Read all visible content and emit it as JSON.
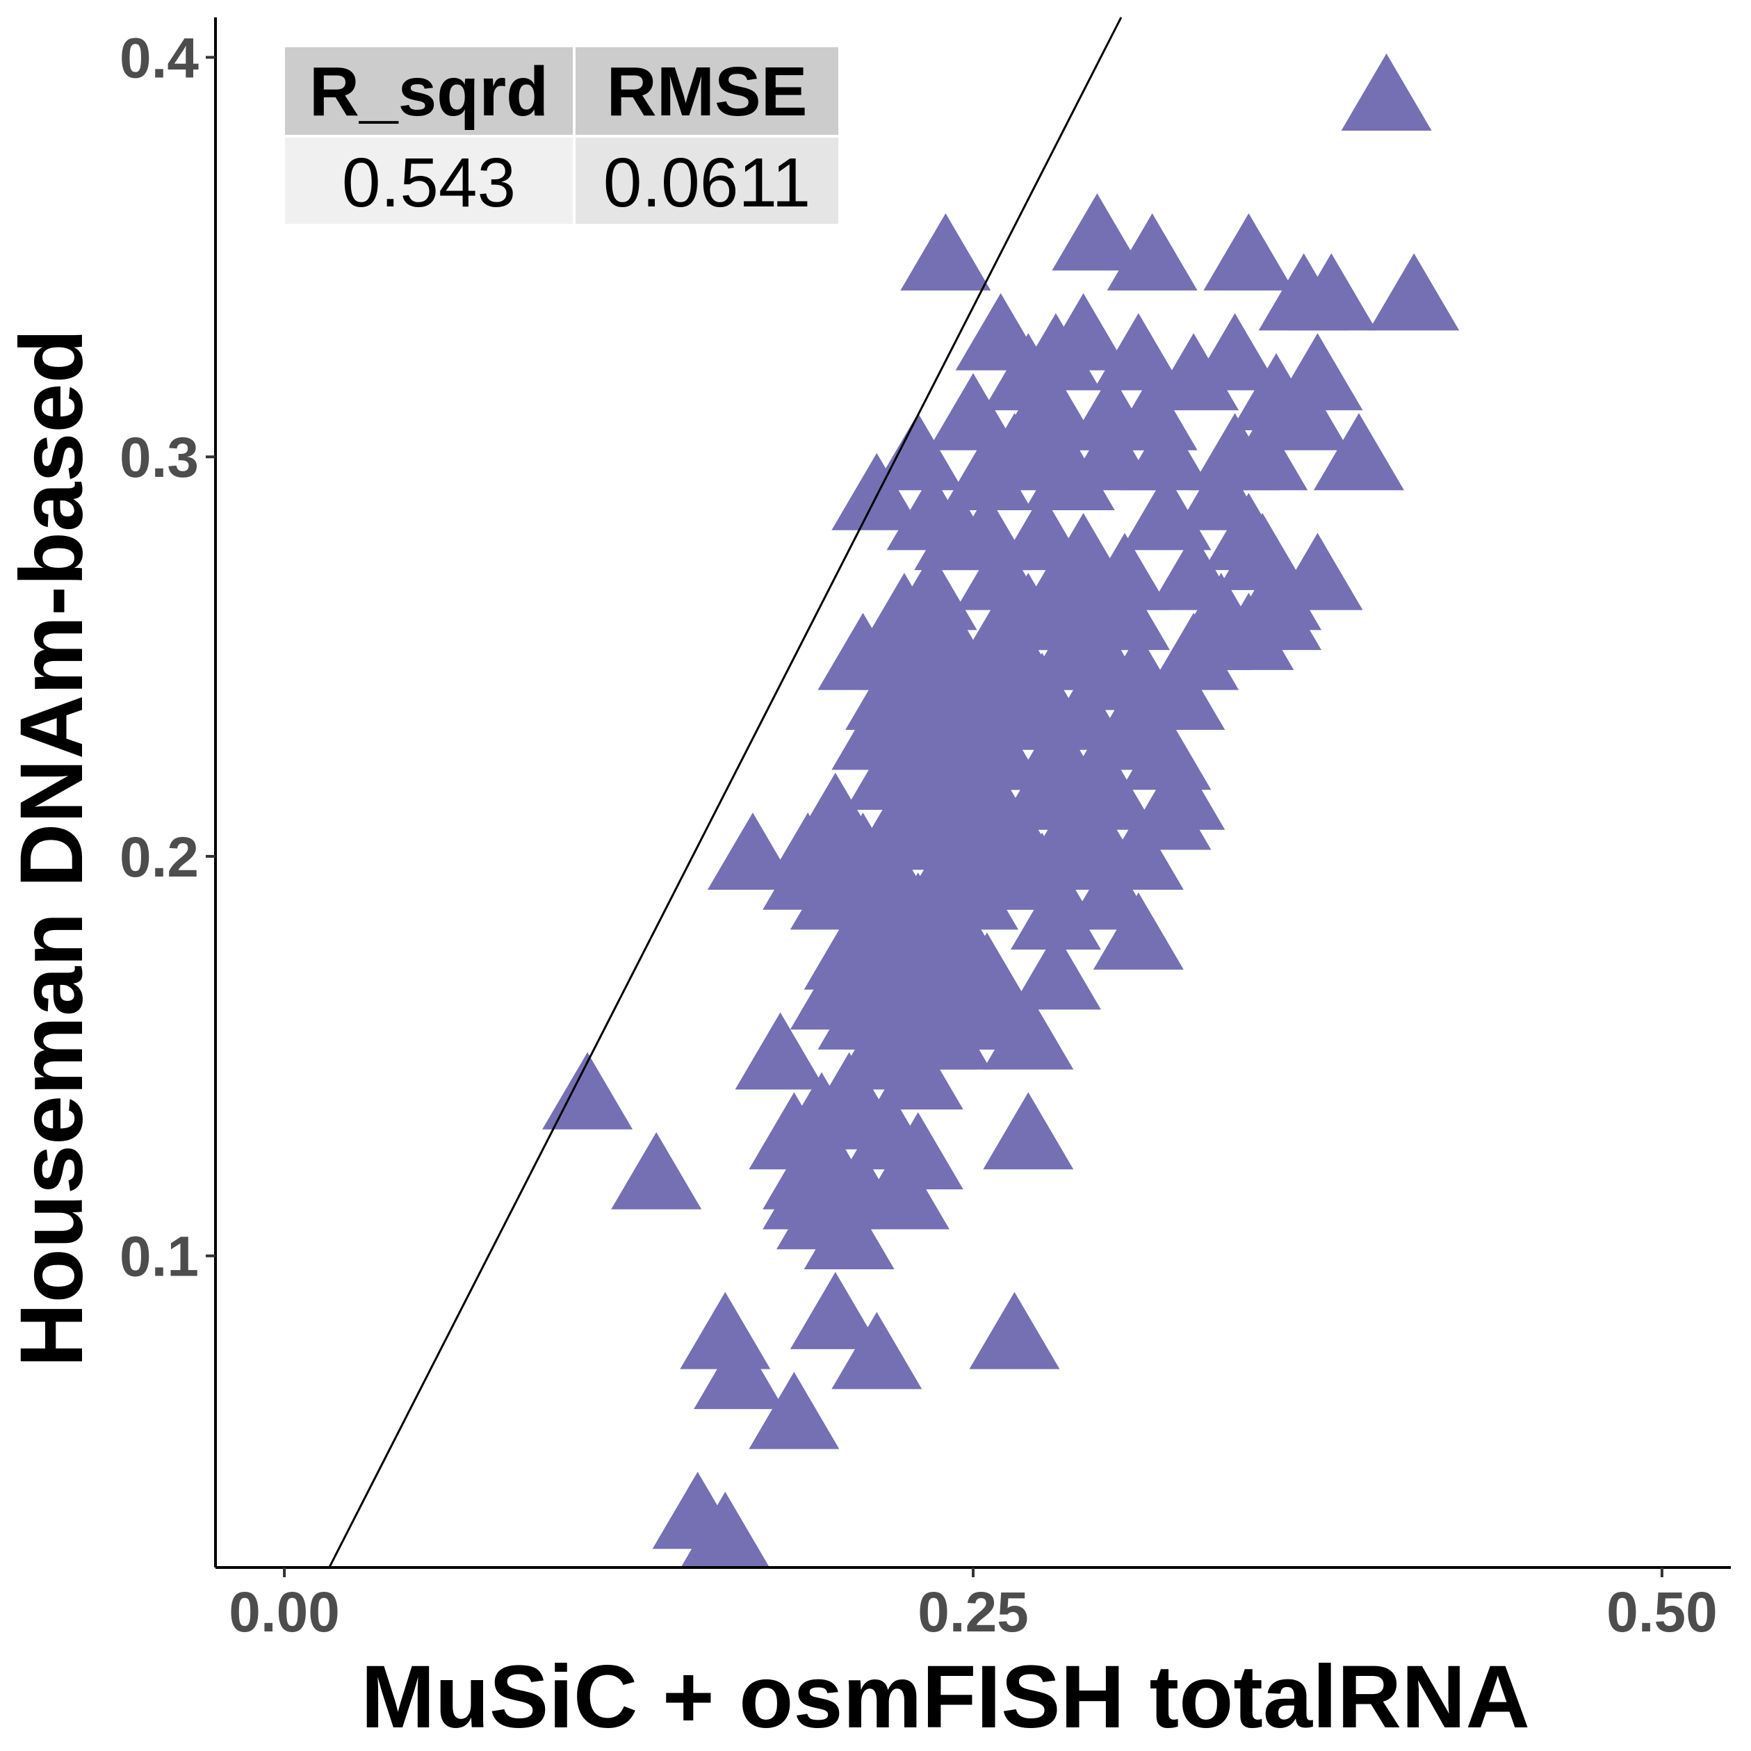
{
  "chart_data": {
    "type": "scatter",
    "title": "",
    "xlabel": "MuSiC + osmFISH totalRNA",
    "ylabel": "Houseman DNAm-based",
    "xlim": [
      -0.025,
      0.525
    ],
    "ylim": [
      0.022,
      0.41
    ],
    "x_ticks": [
      0.0,
      0.25,
      0.5
    ],
    "x_tick_labels": [
      "0.00",
      "0.25",
      "0.50"
    ],
    "y_ticks": [
      0.1,
      0.2,
      0.3,
      0.4
    ],
    "y_tick_labels": [
      "0.1",
      "0.2",
      "0.3",
      "0.4"
    ],
    "grid": false,
    "marker": "triangle",
    "point_color": "#7570b3",
    "fit_line": {
      "color": "#000000",
      "slope": 1.35,
      "intercept": 0.0
    },
    "stats_table": {
      "headers": [
        "R_sqrd",
        "RMSE"
      ],
      "values": [
        "0.543",
        "0.0611"
      ]
    },
    "series": [
      {
        "points": [
          [
            0.4,
            0.39
          ],
          [
            0.41,
            0.34
          ],
          [
            0.39,
            0.3
          ],
          [
            0.38,
            0.34
          ],
          [
            0.37,
            0.34
          ],
          [
            0.35,
            0.35
          ],
          [
            0.24,
            0.35
          ],
          [
            0.295,
            0.355
          ],
          [
            0.315,
            0.35
          ],
          [
            0.345,
            0.325
          ],
          [
            0.375,
            0.32
          ],
          [
            0.36,
            0.315
          ],
          [
            0.31,
            0.325
          ],
          [
            0.33,
            0.32
          ],
          [
            0.355,
            0.3
          ],
          [
            0.37,
            0.31
          ],
          [
            0.375,
            0.27
          ],
          [
            0.36,
            0.265
          ],
          [
            0.34,
            0.29
          ],
          [
            0.32,
            0.3
          ],
          [
            0.29,
            0.33
          ],
          [
            0.28,
            0.325
          ],
          [
            0.27,
            0.32
          ],
          [
            0.26,
            0.33
          ],
          [
            0.27,
            0.305
          ],
          [
            0.28,
            0.31
          ],
          [
            0.3,
            0.3
          ],
          [
            0.305,
            0.27
          ],
          [
            0.29,
            0.26
          ],
          [
            0.33,
            0.27
          ],
          [
            0.35,
            0.28
          ],
          [
            0.36,
            0.26
          ],
          [
            0.335,
            0.255
          ],
          [
            0.325,
            0.24
          ],
          [
            0.31,
            0.245
          ],
          [
            0.32,
            0.225
          ],
          [
            0.305,
            0.23
          ],
          [
            0.295,
            0.22
          ],
          [
            0.32,
            0.21
          ],
          [
            0.285,
            0.205
          ],
          [
            0.3,
            0.19
          ],
          [
            0.31,
            0.18
          ],
          [
            0.28,
            0.185
          ],
          [
            0.28,
            0.17
          ],
          [
            0.27,
            0.155
          ],
          [
            0.27,
            0.13
          ],
          [
            0.265,
            0.08
          ],
          [
            0.285,
            0.295
          ],
          [
            0.255,
            0.295
          ],
          [
            0.25,
            0.31
          ],
          [
            0.245,
            0.28
          ],
          [
            0.235,
            0.285
          ],
          [
            0.26,
            0.27
          ],
          [
            0.27,
            0.26
          ],
          [
            0.24,
            0.255
          ],
          [
            0.255,
            0.245
          ],
          [
            0.265,
            0.235
          ],
          [
            0.275,
            0.24
          ],
          [
            0.285,
            0.25
          ],
          [
            0.29,
            0.235
          ],
          [
            0.25,
            0.225
          ],
          [
            0.24,
            0.225
          ],
          [
            0.23,
            0.24
          ],
          [
            0.22,
            0.24
          ],
          [
            0.225,
            0.25
          ],
          [
            0.215,
            0.23
          ],
          [
            0.23,
            0.22
          ],
          [
            0.245,
            0.21
          ],
          [
            0.26,
            0.21
          ],
          [
            0.275,
            0.215
          ],
          [
            0.29,
            0.21
          ],
          [
            0.265,
            0.195
          ],
          [
            0.25,
            0.19
          ],
          [
            0.24,
            0.195
          ],
          [
            0.22,
            0.195
          ],
          [
            0.205,
            0.2
          ],
          [
            0.2,
            0.19
          ],
          [
            0.17,
            0.2
          ],
          [
            0.215,
            0.185
          ],
          [
            0.225,
            0.175
          ],
          [
            0.24,
            0.17
          ],
          [
            0.255,
            0.17
          ],
          [
            0.26,
            0.16
          ],
          [
            0.235,
            0.155
          ],
          [
            0.22,
            0.16
          ],
          [
            0.21,
            0.16
          ],
          [
            0.215,
            0.15
          ],
          [
            0.23,
            0.145
          ],
          [
            0.205,
            0.14
          ],
          [
            0.195,
            0.135
          ],
          [
            0.185,
            0.13
          ],
          [
            0.19,
            0.12
          ],
          [
            0.2,
            0.12
          ],
          [
            0.21,
            0.115
          ],
          [
            0.225,
            0.115
          ],
          [
            0.195,
            0.11
          ],
          [
            0.205,
            0.105
          ],
          [
            0.18,
            0.15
          ],
          [
            0.19,
            0.115
          ],
          [
            0.21,
            0.25
          ],
          [
            0.225,
            0.26
          ],
          [
            0.235,
            0.265
          ],
          [
            0.23,
            0.3
          ],
          [
            0.215,
            0.29
          ],
          [
            0.19,
            0.2
          ],
          [
            0.2,
            0.085
          ],
          [
            0.215,
            0.075
          ],
          [
            0.16,
            0.08
          ],
          [
            0.165,
            0.07
          ],
          [
            0.185,
            0.06
          ],
          [
            0.15,
            0.035
          ],
          [
            0.16,
            0.03
          ],
          [
            0.11,
            0.14
          ],
          [
            0.135,
            0.12
          ],
          [
            0.345,
            0.3
          ],
          [
            0.355,
            0.275
          ],
          [
            0.34,
            0.26
          ],
          [
            0.35,
            0.255
          ],
          [
            0.325,
            0.215
          ],
          [
            0.31,
            0.2
          ],
          [
            0.3,
            0.245
          ],
          [
            0.29,
            0.275
          ],
          [
            0.255,
            0.28
          ],
          [
            0.265,
            0.3
          ],
          [
            0.3,
            0.31
          ],
          [
            0.315,
            0.31
          ],
          [
            0.32,
            0.285
          ],
          [
            0.305,
            0.26
          ],
          [
            0.28,
            0.265
          ],
          [
            0.275,
            0.28
          ],
          [
            0.26,
            0.255
          ],
          [
            0.245,
            0.245
          ],
          [
            0.235,
            0.235
          ],
          [
            0.25,
            0.235
          ],
          [
            0.28,
            0.225
          ],
          [
            0.295,
            0.2
          ],
          [
            0.275,
            0.195
          ],
          [
            0.235,
            0.205
          ],
          [
            0.23,
            0.185
          ],
          [
            0.245,
            0.18
          ],
          [
            0.225,
            0.165
          ],
          [
            0.24,
            0.155
          ],
          [
            0.25,
            0.16
          ],
          [
            0.2,
            0.165
          ],
          [
            0.205,
            0.175
          ],
          [
            0.215,
            0.17
          ],
          [
            0.21,
            0.135
          ],
          [
            0.22,
            0.13
          ],
          [
            0.23,
            0.125
          ],
          [
            0.225,
            0.21
          ],
          [
            0.26,
            0.2
          ],
          [
            0.27,
            0.2
          ],
          [
            0.285,
            0.22
          ],
          [
            0.3,
            0.215
          ],
          [
            0.31,
            0.235
          ],
          [
            0.33,
            0.25
          ],
          [
            0.295,
            0.25
          ],
          [
            0.27,
            0.245
          ],
          [
            0.26,
            0.225
          ],
          [
            0.25,
            0.2
          ],
          [
            0.24,
            0.215
          ],
          [
            0.23,
            0.23
          ],
          [
            0.22,
            0.22
          ],
          [
            0.2,
            0.21
          ],
          [
            0.21,
            0.2
          ],
          [
            0.19,
            0.195
          ],
          [
            0.245,
            0.195
          ],
          [
            0.255,
            0.215
          ]
        ]
      }
    ]
  }
}
